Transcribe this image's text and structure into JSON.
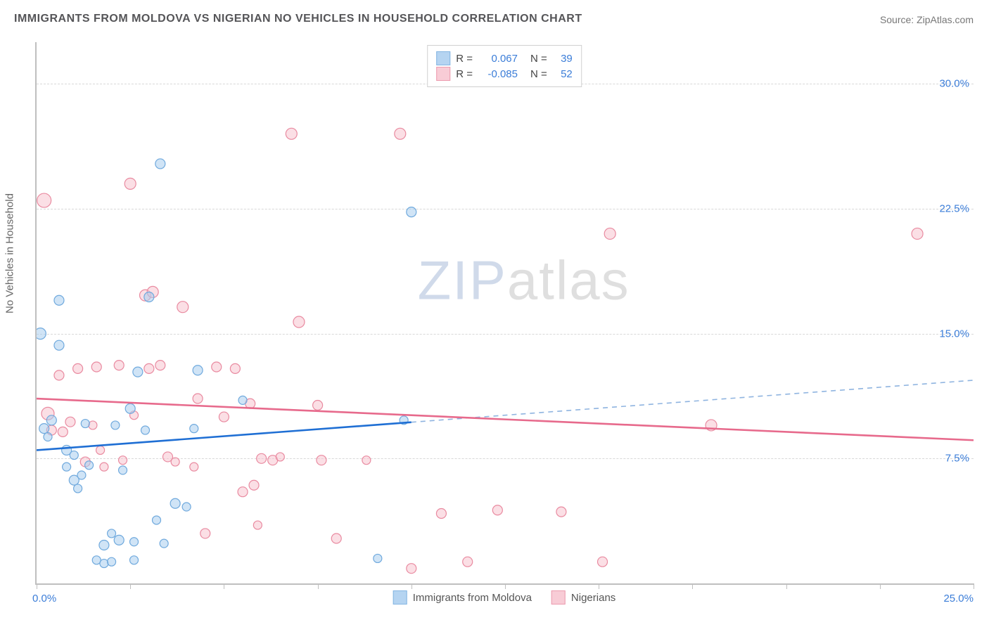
{
  "title": "IMMIGRANTS FROM MOLDOVA VS NIGERIAN NO VEHICLES IN HOUSEHOLD CORRELATION CHART",
  "source_prefix": "Source: ",
  "source_name": "ZipAtlas.com",
  "y_axis_label": "No Vehicles in Household",
  "watermark_a": "ZIP",
  "watermark_b": "atlas",
  "chart": {
    "type": "scatter",
    "xlim": [
      0,
      25
    ],
    "ylim": [
      0,
      32.5
    ],
    "x_tick_step": 2.5,
    "x_label_min": "0.0%",
    "x_label_max": "25.0%",
    "y_ticks": [
      7.5,
      15.0,
      22.5,
      30.0
    ],
    "y_tick_labels": [
      "7.5%",
      "15.0%",
      "22.5%",
      "30.0%"
    ],
    "background_color": "#ffffff",
    "grid_color": "#d8d8d8",
    "axis_color": "#bfbfbf",
    "value_color": "#3b7dd8",
    "text_color": "#555558",
    "series": [
      {
        "name": "Immigrants from Moldova",
        "fill_color": "#a9cdef",
        "stroke_color": "#6fa9dd",
        "trend_color": "#1f6fd4",
        "trend_dash_color": "#8fb4e0",
        "R_label": "R =",
        "R": "0.067",
        "N_label": "N =",
        "N": "39",
        "fit_y_at_xmin": 8.0,
        "fit_y_at_xmax": 12.2,
        "fit_solid_until_x": 10.0,
        "points": [
          {
            "x": 0.1,
            "y": 15.0,
            "r": 8
          },
          {
            "x": 0.2,
            "y": 9.3,
            "r": 7
          },
          {
            "x": 0.3,
            "y": 8.8,
            "r": 6
          },
          {
            "x": 0.4,
            "y": 9.8,
            "r": 7
          },
          {
            "x": 0.6,
            "y": 17.0,
            "r": 7
          },
          {
            "x": 0.6,
            "y": 14.3,
            "r": 7
          },
          {
            "x": 0.8,
            "y": 8.0,
            "r": 7
          },
          {
            "x": 0.8,
            "y": 7.0,
            "r": 6
          },
          {
            "x": 1.0,
            "y": 7.7,
            "r": 6
          },
          {
            "x": 1.0,
            "y": 6.2,
            "r": 7
          },
          {
            "x": 1.1,
            "y": 5.7,
            "r": 6
          },
          {
            "x": 1.2,
            "y": 6.5,
            "r": 6
          },
          {
            "x": 1.3,
            "y": 9.6,
            "r": 6
          },
          {
            "x": 1.4,
            "y": 7.1,
            "r": 6
          },
          {
            "x": 1.6,
            "y": 1.4,
            "r": 6
          },
          {
            "x": 1.8,
            "y": 1.2,
            "r": 6
          },
          {
            "x": 1.8,
            "y": 2.3,
            "r": 7
          },
          {
            "x": 2.0,
            "y": 3.0,
            "r": 6
          },
          {
            "x": 2.0,
            "y": 1.3,
            "r": 6
          },
          {
            "x": 2.1,
            "y": 9.5,
            "r": 6
          },
          {
            "x": 2.2,
            "y": 2.6,
            "r": 7
          },
          {
            "x": 2.3,
            "y": 6.8,
            "r": 6
          },
          {
            "x": 2.5,
            "y": 10.5,
            "r": 7
          },
          {
            "x": 2.6,
            "y": 2.5,
            "r": 6
          },
          {
            "x": 2.6,
            "y": 1.4,
            "r": 6
          },
          {
            "x": 2.7,
            "y": 12.7,
            "r": 7
          },
          {
            "x": 2.9,
            "y": 9.2,
            "r": 6
          },
          {
            "x": 3.0,
            "y": 17.2,
            "r": 7
          },
          {
            "x": 3.2,
            "y": 3.8,
            "r": 6
          },
          {
            "x": 3.3,
            "y": 25.2,
            "r": 7
          },
          {
            "x": 3.4,
            "y": 2.4,
            "r": 6
          },
          {
            "x": 3.7,
            "y": 4.8,
            "r": 7
          },
          {
            "x": 4.0,
            "y": 4.6,
            "r": 6
          },
          {
            "x": 4.2,
            "y": 9.3,
            "r": 6
          },
          {
            "x": 4.3,
            "y": 12.8,
            "r": 7
          },
          {
            "x": 5.5,
            "y": 11.0,
            "r": 6
          },
          {
            "x": 9.1,
            "y": 1.5,
            "r": 6
          },
          {
            "x": 9.8,
            "y": 9.8,
            "r": 6
          },
          {
            "x": 10.0,
            "y": 22.3,
            "r": 7
          }
        ]
      },
      {
        "name": "Nigerians",
        "fill_color": "#f7c4cf",
        "stroke_color": "#e98aa0",
        "trend_color": "#e76a8c",
        "R_label": "R =",
        "R": "-0.085",
        "N_label": "N =",
        "N": "52",
        "fit_y_at_xmin": 11.1,
        "fit_y_at_xmax": 8.6,
        "fit_solid_until_x": 25.0,
        "points": [
          {
            "x": 0.2,
            "y": 23.0,
            "r": 10
          },
          {
            "x": 0.3,
            "y": 10.2,
            "r": 9
          },
          {
            "x": 0.4,
            "y": 9.2,
            "r": 7
          },
          {
            "x": 0.6,
            "y": 12.5,
            "r": 7
          },
          {
            "x": 0.7,
            "y": 9.1,
            "r": 7
          },
          {
            "x": 0.9,
            "y": 9.7,
            "r": 7
          },
          {
            "x": 1.1,
            "y": 12.9,
            "r": 7
          },
          {
            "x": 1.3,
            "y": 7.3,
            "r": 7
          },
          {
            "x": 1.5,
            "y": 9.5,
            "r": 6
          },
          {
            "x": 1.6,
            "y": 13.0,
            "r": 7
          },
          {
            "x": 1.7,
            "y": 8.0,
            "r": 6
          },
          {
            "x": 1.8,
            "y": 7.0,
            "r": 6
          },
          {
            "x": 2.2,
            "y": 13.1,
            "r": 7
          },
          {
            "x": 2.3,
            "y": 7.4,
            "r": 6
          },
          {
            "x": 2.5,
            "y": 24.0,
            "r": 8
          },
          {
            "x": 2.6,
            "y": 10.1,
            "r": 6
          },
          {
            "x": 2.9,
            "y": 17.3,
            "r": 8
          },
          {
            "x": 3.0,
            "y": 12.9,
            "r": 7
          },
          {
            "x": 3.1,
            "y": 17.5,
            "r": 8
          },
          {
            "x": 3.3,
            "y": 13.1,
            "r": 7
          },
          {
            "x": 3.5,
            "y": 7.6,
            "r": 7
          },
          {
            "x": 3.7,
            "y": 7.3,
            "r": 6
          },
          {
            "x": 3.9,
            "y": 16.6,
            "r": 8
          },
          {
            "x": 4.2,
            "y": 7.0,
            "r": 6
          },
          {
            "x": 4.3,
            "y": 11.1,
            "r": 7
          },
          {
            "x": 4.5,
            "y": 3.0,
            "r": 7
          },
          {
            "x": 4.8,
            "y": 13.0,
            "r": 7
          },
          {
            "x": 5.0,
            "y": 10.0,
            "r": 7
          },
          {
            "x": 5.3,
            "y": 12.9,
            "r": 7
          },
          {
            "x": 5.5,
            "y": 5.5,
            "r": 7
          },
          {
            "x": 5.7,
            "y": 10.8,
            "r": 7
          },
          {
            "x": 5.8,
            "y": 5.9,
            "r": 7
          },
          {
            "x": 5.9,
            "y": 3.5,
            "r": 6
          },
          {
            "x": 6.0,
            "y": 7.5,
            "r": 7
          },
          {
            "x": 6.3,
            "y": 7.4,
            "r": 7
          },
          {
            "x": 6.5,
            "y": 7.6,
            "r": 6
          },
          {
            "x": 6.8,
            "y": 27.0,
            "r": 8
          },
          {
            "x": 7.0,
            "y": 15.7,
            "r": 8
          },
          {
            "x": 7.5,
            "y": 10.7,
            "r": 7
          },
          {
            "x": 7.6,
            "y": 7.4,
            "r": 7
          },
          {
            "x": 8.0,
            "y": 2.7,
            "r": 7
          },
          {
            "x": 8.8,
            "y": 7.4,
            "r": 6
          },
          {
            "x": 9.7,
            "y": 27.0,
            "r": 8
          },
          {
            "x": 10.0,
            "y": 0.9,
            "r": 7
          },
          {
            "x": 10.8,
            "y": 4.2,
            "r": 7
          },
          {
            "x": 11.5,
            "y": 1.3,
            "r": 7
          },
          {
            "x": 12.3,
            "y": 4.4,
            "r": 7
          },
          {
            "x": 14.0,
            "y": 4.3,
            "r": 7
          },
          {
            "x": 15.1,
            "y": 1.3,
            "r": 7
          },
          {
            "x": 15.3,
            "y": 21.0,
            "r": 8
          },
          {
            "x": 18.0,
            "y": 9.5,
            "r": 8
          },
          {
            "x": 23.5,
            "y": 21.0,
            "r": 8
          }
        ]
      }
    ]
  }
}
